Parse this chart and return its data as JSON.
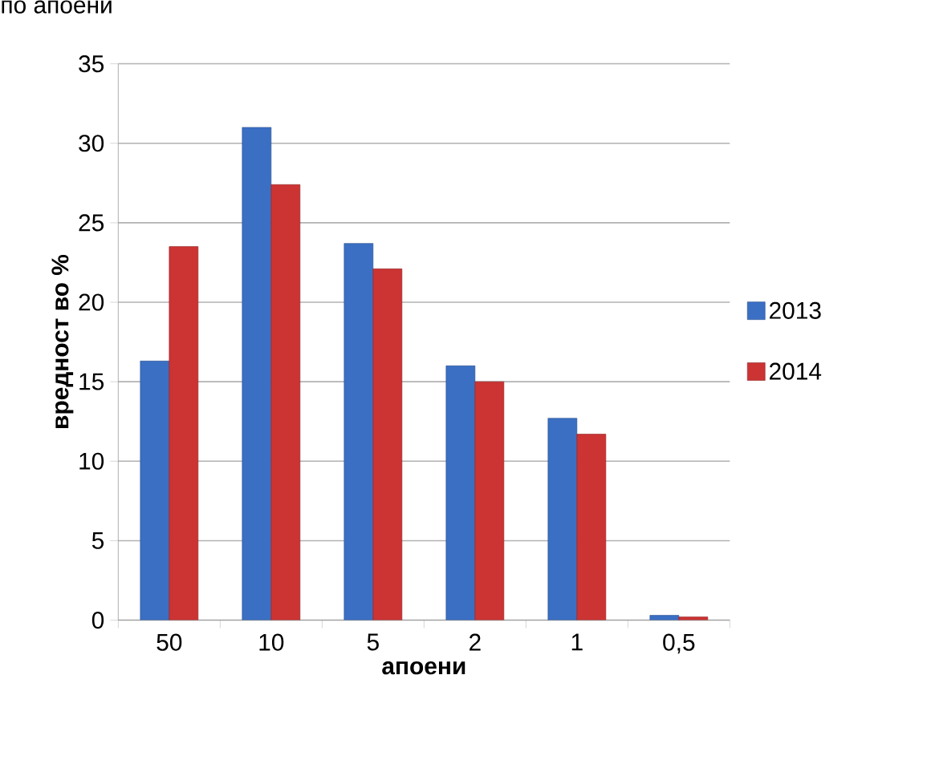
{
  "chart_data": {
    "type": "bar",
    "title": "по апоени",
    "xlabel": "апоени",
    "ylabel": "вредност во %",
    "categories": [
      "50",
      "10",
      "5",
      "2",
      "1",
      "0,5"
    ],
    "series": [
      {
        "name": "2013",
        "color": "#3a6fc4",
        "values": [
          16.3,
          31.0,
          23.7,
          16.0,
          12.7,
          0.3
        ]
      },
      {
        "name": "2014",
        "color": "#cc3333",
        "values": [
          23.5,
          27.4,
          22.1,
          15.0,
          11.7,
          0.2
        ]
      }
    ],
    "ylim": [
      0,
      35
    ],
    "yticks": [
      0,
      5,
      10,
      15,
      20,
      25,
      30,
      35
    ],
    "grid": "y",
    "legend": "right"
  }
}
